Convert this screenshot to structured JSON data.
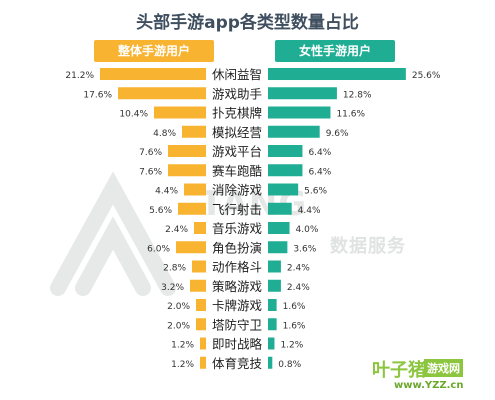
{
  "title": "头部手游app各类型数量占比",
  "watermark": {
    "brand": "TALKINGDATA",
    "brand_visible": "TANG",
    "subtitle": "数据服务"
  },
  "site_badge": {
    "name": "叶子猪",
    "label": "游戏网",
    "url": "www.YZZ.cn"
  },
  "colors": {
    "left_bar": "#f8b331",
    "right_bar": "#1fae93",
    "title": "#3f4f5f",
    "text": "#333333"
  },
  "chart_data": {
    "type": "bar",
    "title": "头部手游app各类型数量占比",
    "categories": [
      "休闲益智",
      "游戏助手",
      "扑克棋牌",
      "模拟经营",
      "游戏平台",
      "赛车跑酷",
      "消除游戏",
      "飞行射击",
      "音乐游戏",
      "角色扮演",
      "动作格斗",
      "策略游戏",
      "卡牌游戏",
      "塔防守卫",
      "即时战略",
      "体育竞技"
    ],
    "series": [
      {
        "name": "整体手游用户",
        "direction": "left",
        "color": "#f8b331",
        "values": [
          21.2,
          17.6,
          10.4,
          4.8,
          7.6,
          7.6,
          4.4,
          5.6,
          2.4,
          6.0,
          2.8,
          3.2,
          2.0,
          2.0,
          1.2,
          1.2
        ],
        "labels": [
          "21.2%",
          "17.6%",
          "10.4%",
          "4.8%",
          "7.6%",
          "7.6%",
          "4.4%",
          "5.6%",
          "2.4%",
          "6.0%",
          "2.8%",
          "3.2%",
          "2.0%",
          "2.0%",
          "1.2%",
          "1.2%"
        ]
      },
      {
        "name": "女性手游用户",
        "direction": "right",
        "color": "#1fae93",
        "values": [
          25.6,
          12.8,
          11.6,
          9.6,
          6.4,
          6.4,
          5.6,
          4.4,
          4.0,
          3.6,
          2.4,
          2.4,
          1.6,
          1.6,
          1.2,
          0.8
        ],
        "labels": [
          "25.6%",
          "12.8%",
          "11.6%",
          "9.6%",
          "6.4%",
          "6.4%",
          "5.6%",
          "4.4%",
          "4.0%",
          "3.6%",
          "2.4%",
          "2.4%",
          "1.6%",
          "1.6%",
          "1.2%",
          "0.8%"
        ]
      }
    ],
    "xlim": [
      0,
      26
    ],
    "unit": "%",
    "legend": "top",
    "grid": false
  }
}
